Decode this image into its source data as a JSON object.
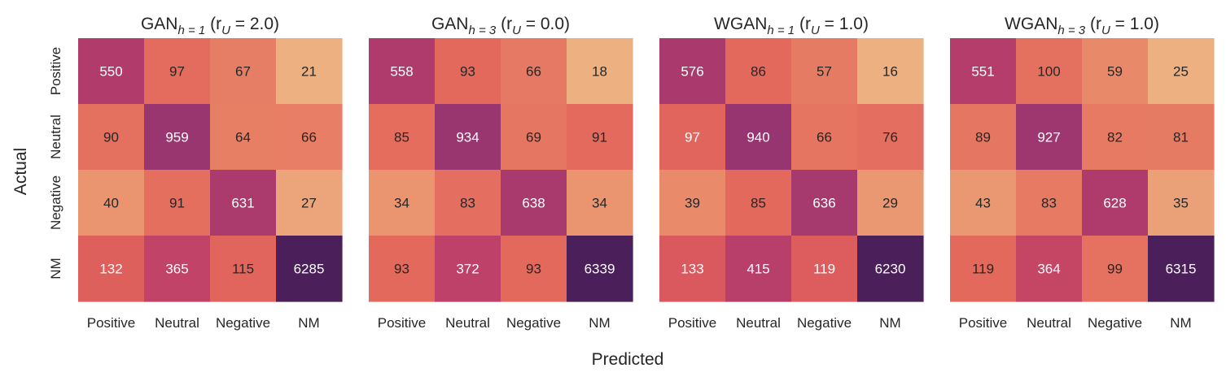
{
  "figure": {
    "xlabel": "Predicted",
    "ylabel": "Actual"
  },
  "chart_data": [
    {
      "type": "heatmap",
      "title": {
        "base": "GAN",
        "sub": "h = 1",
        "paren": "(r",
        "psub": "U",
        "tail": " = 2.0)"
      },
      "x_categories": [
        "Positive",
        "Neutral",
        "Negative",
        "NM"
      ],
      "y_categories": [
        "Positive",
        "Neutral",
        "Negative",
        "NM"
      ],
      "matrix": [
        [
          550,
          97,
          67,
          21
        ],
        [
          90,
          959,
          64,
          66
        ],
        [
          40,
          91,
          631,
          27
        ],
        [
          132,
          365,
          115,
          6285
        ]
      ]
    },
    {
      "type": "heatmap",
      "title": {
        "base": "GAN",
        "sub": "h = 3",
        "paren": "(r",
        "psub": "U",
        "tail": " = 0.0)"
      },
      "x_categories": [
        "Positive",
        "Neutral",
        "Negative",
        "NM"
      ],
      "y_categories": [
        "Positive",
        "Neutral",
        "Negative",
        "NM"
      ],
      "matrix": [
        [
          558,
          93,
          66,
          18
        ],
        [
          85,
          934,
          69,
          91
        ],
        [
          34,
          83,
          638,
          34
        ],
        [
          93,
          372,
          93,
          6339
        ]
      ]
    },
    {
      "type": "heatmap",
      "title": {
        "base": "WGAN",
        "sub": "h = 1",
        "paren": "(r",
        "psub": "U",
        "tail": " = 1.0)"
      },
      "x_categories": [
        "Positive",
        "Neutral",
        "Negative",
        "NM"
      ],
      "y_categories": [
        "Positive",
        "Neutral",
        "Negative",
        "NM"
      ],
      "matrix": [
        [
          576,
          86,
          57,
          16
        ],
        [
          97,
          940,
          66,
          76
        ],
        [
          39,
          85,
          636,
          29
        ],
        [
          133,
          415,
          119,
          6230
        ]
      ]
    },
    {
      "type": "heatmap",
      "title": {
        "base": "WGAN",
        "sub": "h = 3",
        "paren": "(r",
        "psub": "U",
        "tail": " = 1.0)"
      },
      "x_categories": [
        "Positive",
        "Neutral",
        "Negative",
        "NM"
      ],
      "y_categories": [
        "Positive",
        "Neutral",
        "Negative",
        "NM"
      ],
      "matrix": [
        [
          551,
          100,
          59,
          25
        ],
        [
          89,
          927,
          82,
          81
        ],
        [
          43,
          83,
          628,
          35
        ],
        [
          119,
          364,
          99,
          6315
        ]
      ]
    }
  ],
  "colormap": {
    "name": "flare_r",
    "stops": [
      "#edb081",
      "#e98d6b",
      "#e3685c",
      "#d14a61",
      "#b13c6c",
      "#8f3371",
      "#6c2b6d",
      "#4a1f5a"
    ]
  }
}
